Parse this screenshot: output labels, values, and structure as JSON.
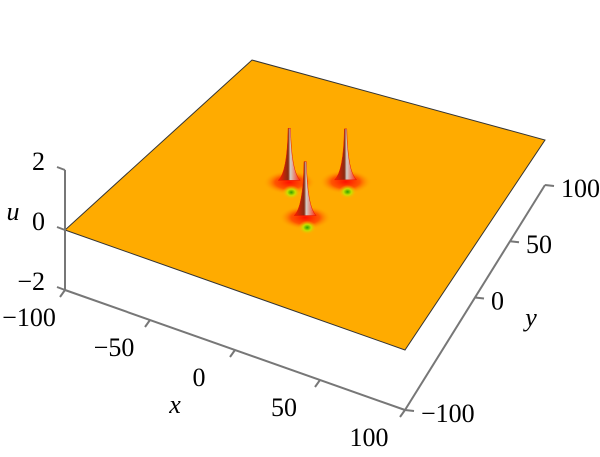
{
  "chart_data": {
    "type": "surface3d",
    "xlabel": "x",
    "ylabel": "y",
    "ulabel": "u",
    "xlim": [
      -100,
      100
    ],
    "ylim": [
      -100,
      100
    ],
    "ulim": [
      -2,
      2
    ],
    "xticks": [
      {
        "value": -100,
        "label": "−100"
      },
      {
        "value": -50,
        "label": "−50"
      },
      0,
      50,
      100
    ],
    "yticks": [
      {
        "value": -100,
        "label": "−100"
      },
      0,
      50,
      100
    ],
    "uticks": [
      {
        "value": -2,
        "label": "−2"
      },
      0,
      2
    ],
    "surface_color": "#ffab00",
    "peak_color": "#e81800",
    "dip_color": "#4cc21a",
    "peaks": [
      {
        "x": 8,
        "y": 20,
        "u": 2
      },
      {
        "x": -20,
        "y": 5,
        "u": 2
      },
      {
        "x": 3,
        "y": -20,
        "u": 2
      }
    ]
  }
}
